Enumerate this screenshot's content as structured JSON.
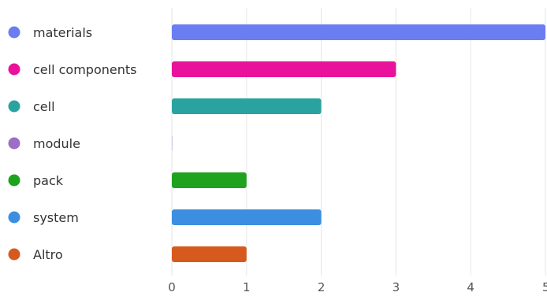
{
  "chart_data": {
    "type": "bar",
    "orientation": "horizontal",
    "categories": [
      "materials",
      "cell components",
      "cell",
      "module",
      "pack",
      "system",
      "Altro"
    ],
    "values": [
      5,
      3,
      2,
      0,
      1,
      2,
      1
    ],
    "colors": [
      "#6a7ef2",
      "#e8139a",
      "#2aa3a0",
      "#9b6fc4",
      "#1fa31f",
      "#3b8ee0",
      "#d65a1e"
    ],
    "title": "",
    "xlabel": "",
    "ylabel": "",
    "xlim": [
      0,
      5
    ],
    "xticks": [
      "0",
      "1",
      "2",
      "3",
      "4",
      "5"
    ],
    "grid": "vertical",
    "legend": "left"
  }
}
